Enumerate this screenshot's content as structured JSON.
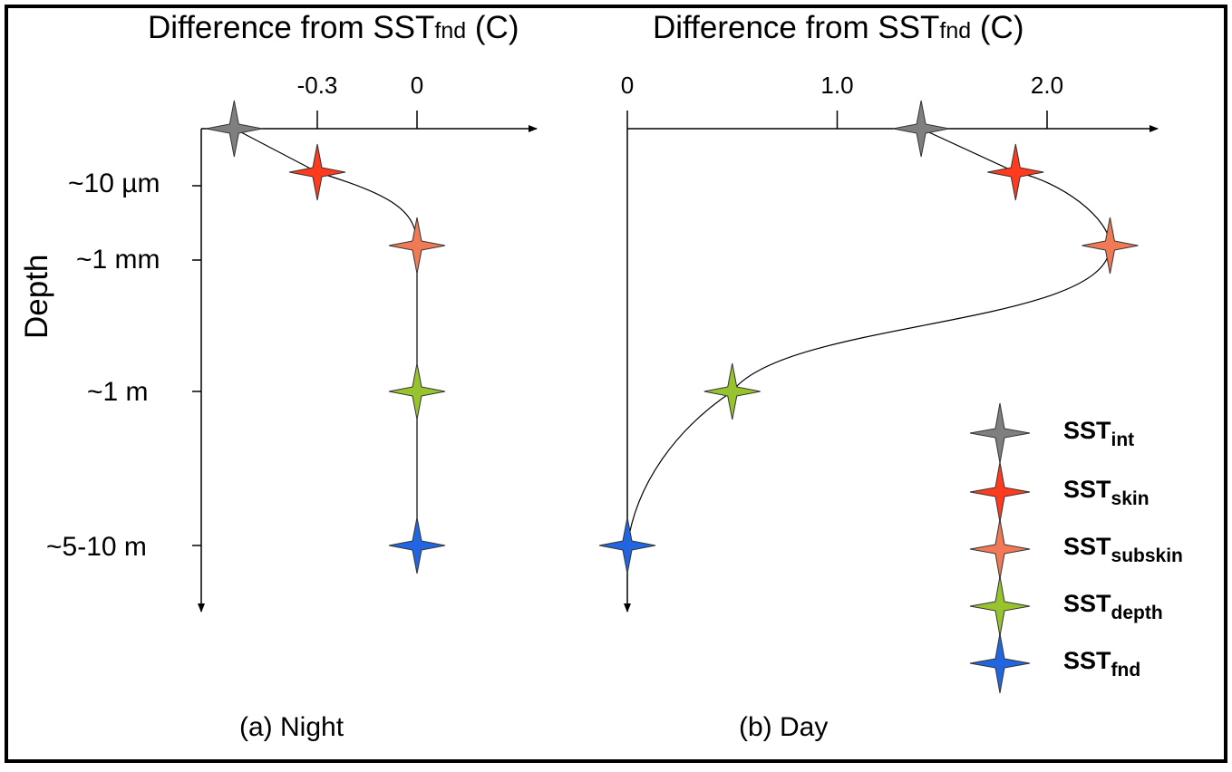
{
  "axis_title_left": "Difference from SST",
  "axis_title_left_sub": "fnd",
  "axis_title_left_unit": " (C)",
  "axis_title_right": "Difference from SST",
  "axis_title_right_sub": "fnd",
  "axis_title_right_unit": " (C)",
  "y_axis_title": "Depth",
  "depth_levels": [
    "~10 µm",
    "~1 mm",
    "~1 m",
    "~5-10 m"
  ],
  "night": {
    "caption": "(a) Night",
    "ticks": [
      {
        "value": -0.3,
        "label": "-0.3"
      },
      {
        "value": 0,
        "label": "0"
      }
    ],
    "points": [
      {
        "kind": "int",
        "depth": "surface",
        "value": -0.55
      },
      {
        "kind": "skin",
        "depth": "~10 µm",
        "value": -0.3
      },
      {
        "kind": "subskin",
        "depth": "~1 mm",
        "value": 0
      },
      {
        "kind": "depth",
        "depth": "~1 m",
        "value": 0
      },
      {
        "kind": "fnd",
        "depth": "~5-10 m",
        "value": 0
      }
    ]
  },
  "day": {
    "caption": "(b) Day",
    "ticks": [
      {
        "value": 0,
        "label": "0"
      },
      {
        "value": 1.0,
        "label": "1.0"
      },
      {
        "value": 2.0,
        "label": "2.0"
      }
    ],
    "points": [
      {
        "kind": "int",
        "depth": "surface",
        "value": 1.4
      },
      {
        "kind": "skin",
        "depth": "~10 µm",
        "value": 1.85
      },
      {
        "kind": "subskin",
        "depth": "~1 mm",
        "value": 2.3
      },
      {
        "kind": "depth",
        "depth": "~1 m",
        "value": 0.5
      },
      {
        "kind": "fnd",
        "depth": "~5-10 m",
        "value": 0
      }
    ]
  },
  "legend": [
    {
      "kind": "int",
      "base": "SST",
      "sub": "int",
      "color": "#7f7f7f"
    },
    {
      "kind": "skin",
      "base": "SST",
      "sub": "skin",
      "color": "#ff3b1f"
    },
    {
      "kind": "subskin",
      "base": "SST",
      "sub": "subskin",
      "color": "#ef7a55"
    },
    {
      "kind": "depth",
      "base": "SST",
      "sub": "depth",
      "color": "#97c32d"
    },
    {
      "kind": "fnd",
      "base": "SST",
      "sub": "fnd",
      "color": "#2166e0"
    }
  ],
  "colors": {
    "border": "#000000",
    "curve": "#000000"
  }
}
